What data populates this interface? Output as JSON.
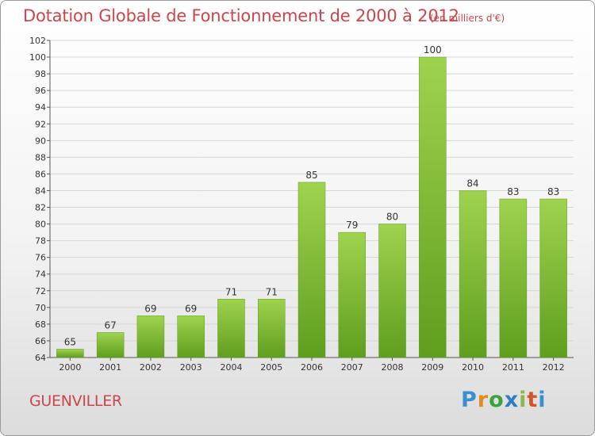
{
  "chart_data": {
    "type": "bar",
    "title": "Dotation Globale de Fonctionnement de 2000 à 2012",
    "unit_label": "(en milliers d'€)",
    "categories": [
      "2000",
      "2001",
      "2002",
      "2003",
      "2004",
      "2005",
      "2006",
      "2007",
      "2008",
      "2009",
      "2010",
      "2011",
      "2012"
    ],
    "values": [
      65,
      67,
      69,
      69,
      71,
      71,
      85,
      79,
      80,
      100,
      84,
      83,
      83
    ],
    "ylim": [
      64,
      102
    ],
    "yticks": [
      64,
      66,
      68,
      70,
      72,
      74,
      76,
      78,
      80,
      82,
      84,
      86,
      88,
      90,
      92,
      94,
      96,
      98,
      100,
      102
    ],
    "grid": true,
    "bar_color": "#7cbf2e"
  },
  "place_name": "GUENVILLER",
  "logo_text": "Proxiti"
}
